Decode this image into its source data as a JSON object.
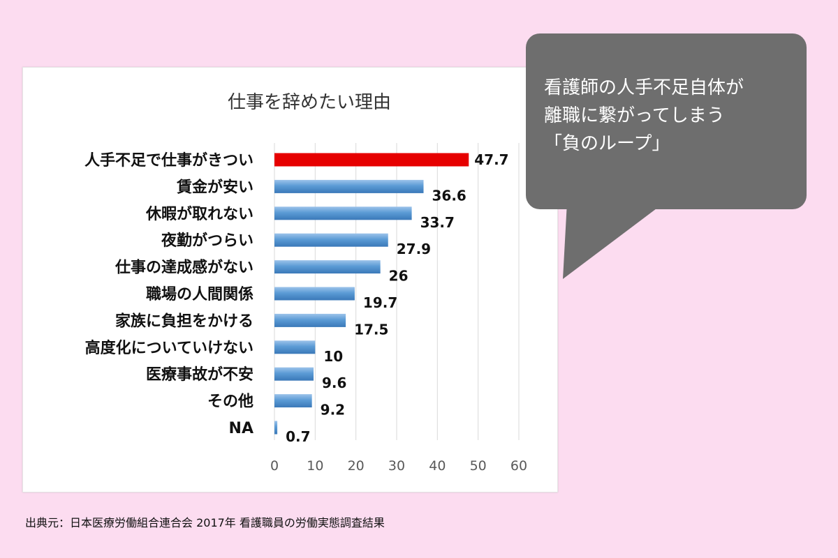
{
  "chart_data": {
    "type": "bar",
    "orientation": "horizontal",
    "title": "仕事を辞めたい理由",
    "categories": [
      "人手不足で仕事がきつい",
      "賃金が安い",
      "休暇が取れない",
      "夜勤がつらい",
      "仕事の達成感がない",
      "職場の人間関係",
      "家族に負担をかける",
      "高度化についていけない",
      "医療事故が不安",
      "その他",
      "NA"
    ],
    "values": [
      47.7,
      36.6,
      33.7,
      27.9,
      26,
      19.7,
      17.5,
      10,
      9.6,
      9.2,
      0.7
    ],
    "value_labels": [
      "47.7",
      "36.6",
      "33.7",
      "27.9",
      "26",
      "19.7",
      "17.5",
      "10",
      "9.6",
      "9.2",
      "0.7"
    ],
    "xlim": [
      0,
      60
    ],
    "xticks": [
      0,
      10,
      20,
      30,
      40,
      50,
      60
    ],
    "grid": true,
    "highlight_index": 0,
    "colors": {
      "bar": "#5b9bd5",
      "bar_dark": "#3a78b8",
      "bar_light": "#9cc3ea",
      "highlight": "#e60000",
      "grid": "#d9d9d9",
      "axis_text": "#595959",
      "label_text": "#111111"
    }
  },
  "callout": {
    "lines": [
      "看護師の人手不足自体が",
      "離職に繋がってしまう",
      "「負のループ」"
    ],
    "background": "#6e6e6e",
    "text_color": "#ffffff"
  },
  "source_note": "出典元：日本医療労働組合連合会 2017年 看護職員の労働実態調査結果",
  "page_background": "#fcdcf0"
}
